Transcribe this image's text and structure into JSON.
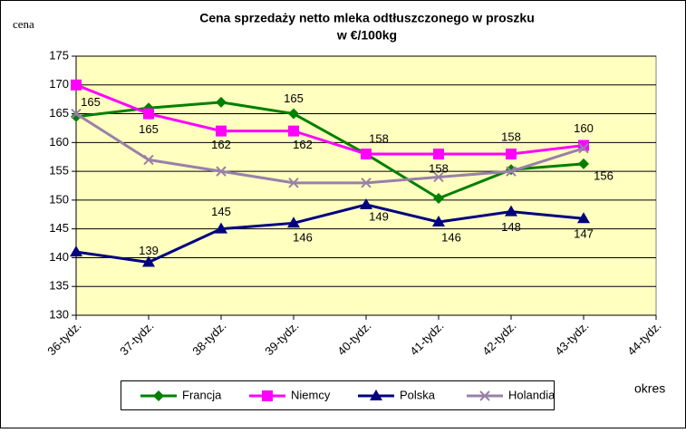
{
  "chart_data": {
    "type": "line",
    "title": "Cena sprzedaży netto mleka  odtłuszczonego w proszku",
    "subtitle": "w €/100kg",
    "y_label": "cena",
    "x_label": "okres",
    "categories": [
      "36-tydz.",
      "37-tydz.",
      "38-tydz.",
      "39-tydz.",
      "40-tydz.",
      "41-tydz.",
      "42-tydz.",
      "43-tydz.",
      "44-tydz."
    ],
    "ylim": [
      130,
      175
    ],
    "yticks": [
      130,
      135,
      140,
      145,
      150,
      155,
      160,
      165,
      170,
      175
    ],
    "grid": true,
    "legend": "bottom",
    "series": [
      {
        "name": "Francja",
        "color": "#008000",
        "marker": "diamond",
        "values": [
          164.5,
          166,
          167,
          165,
          158,
          150.3,
          155.3,
          156.3,
          null
        ],
        "value_labels": [
          null,
          null,
          null,
          "165",
          null,
          null,
          null,
          "156",
          null
        ]
      },
      {
        "name": "Niemcy",
        "color": "#ff00ff",
        "marker": "square",
        "values": [
          170,
          165,
          162,
          162,
          158,
          158,
          158,
          159.5,
          null
        ],
        "value_labels": [
          null,
          "165",
          "162",
          "162",
          "158",
          "158",
          "158",
          "160",
          null
        ]
      },
      {
        "name": "Polska",
        "color": "#000080",
        "marker": "triangle",
        "values": [
          141,
          139.2,
          145,
          146,
          149.2,
          146.2,
          148,
          146.8,
          null
        ],
        "value_labels": [
          null,
          "139",
          "145",
          "146",
          "149",
          "146",
          "148",
          "147",
          null
        ]
      },
      {
        "name": "Holandia",
        "color": "#9980a8",
        "marker": "x",
        "values": [
          165,
          157,
          155,
          153,
          153,
          154,
          155,
          159,
          null
        ],
        "value_labels": [
          "165",
          null,
          null,
          null,
          null,
          null,
          null,
          null,
          null
        ]
      }
    ]
  }
}
